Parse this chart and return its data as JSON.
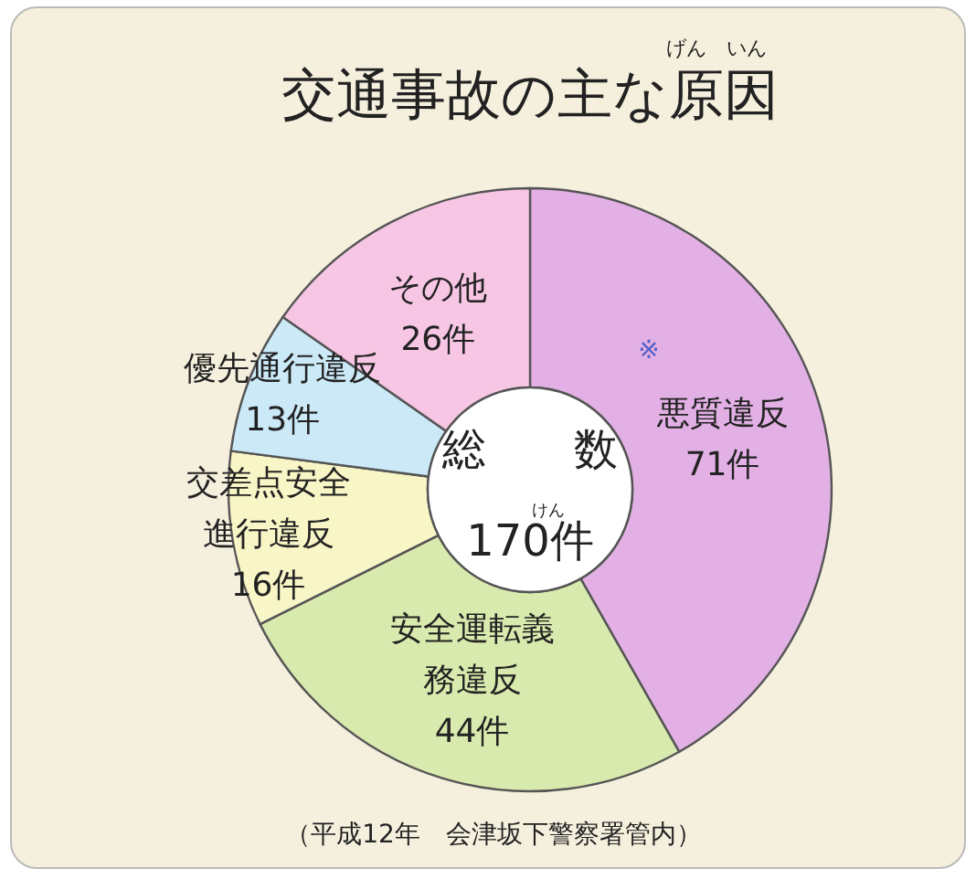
{
  "chart_data": {
    "type": "donut",
    "title": "交通事故の主な原因",
    "categories": [
      "悪質違反",
      "安全運転義務違反",
      "交差点安全進行違反",
      "優先通行違反",
      "その他"
    ],
    "values": [
      71,
      44,
      16,
      13,
      26
    ],
    "value_labels": [
      "71件",
      "44件",
      "16件",
      "13件",
      "26件"
    ],
    "colors": [
      "#e2b0e4",
      "#d9eaae",
      "#f8f5c6",
      "#cbe9f7",
      "#f7c6e4"
    ],
    "annotations": [
      "げん　いん",
      "総　　数",
      "けん",
      "170件",
      "※",
      "（平成12年　会津坂下警察署管内）"
    ]
  }
}
